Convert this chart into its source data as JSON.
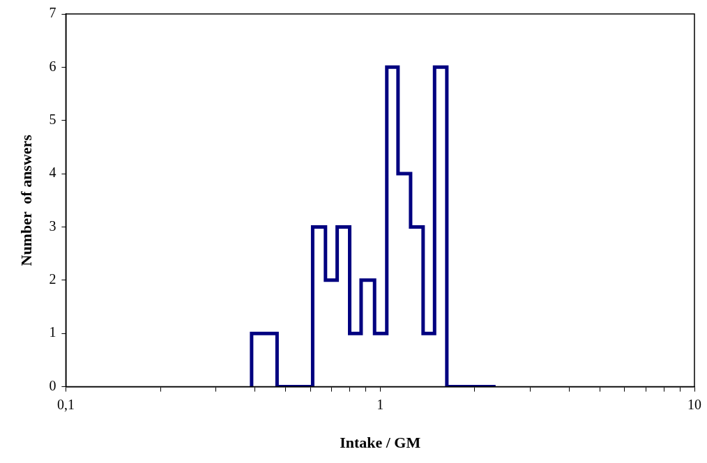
{
  "chart_data": {
    "type": "histogram",
    "xlabel": "Intake / GM",
    "ylabel": "Number  of answers",
    "log": "x",
    "color": "#000080",
    "grid": false,
    "bins": [
      0.39,
      0.47,
      0.61,
      0.67,
      0.73,
      0.8,
      0.87,
      0.96,
      1.05,
      1.14,
      1.25,
      1.37,
      1.49,
      1.63,
      2.33
    ],
    "values": [
      1,
      0,
      3,
      2,
      3,
      1,
      2,
      1,
      6,
      4,
      3,
      1,
      6,
      0
    ],
    "xlim": [
      0.1,
      10
    ],
    "xticks": [
      {
        "value": 0.1,
        "label": "0,1"
      },
      {
        "value": 0.2,
        "label": null
      },
      {
        "value": 0.3,
        "label": null
      },
      {
        "value": 0.4,
        "label": null
      },
      {
        "value": 0.5,
        "label": null
      },
      {
        "value": 0.6,
        "label": null
      },
      {
        "value": 0.7,
        "label": null
      },
      {
        "value": 0.8,
        "label": null
      },
      {
        "value": 0.9,
        "label": null
      },
      1,
      {
        "value": 2,
        "label": null
      },
      {
        "value": 3,
        "label": null
      },
      {
        "value": 4,
        "label": null
      },
      {
        "value": 5,
        "label": null
      },
      {
        "value": 6,
        "label": null
      },
      {
        "value": 7,
        "label": null
      },
      {
        "value": 8,
        "label": null
      },
      {
        "value": 9,
        "label": null
      },
      10
    ],
    "ylim": [
      0,
      7
    ],
    "yticks": [
      0,
      1,
      2,
      3,
      4,
      5,
      6,
      7
    ]
  }
}
